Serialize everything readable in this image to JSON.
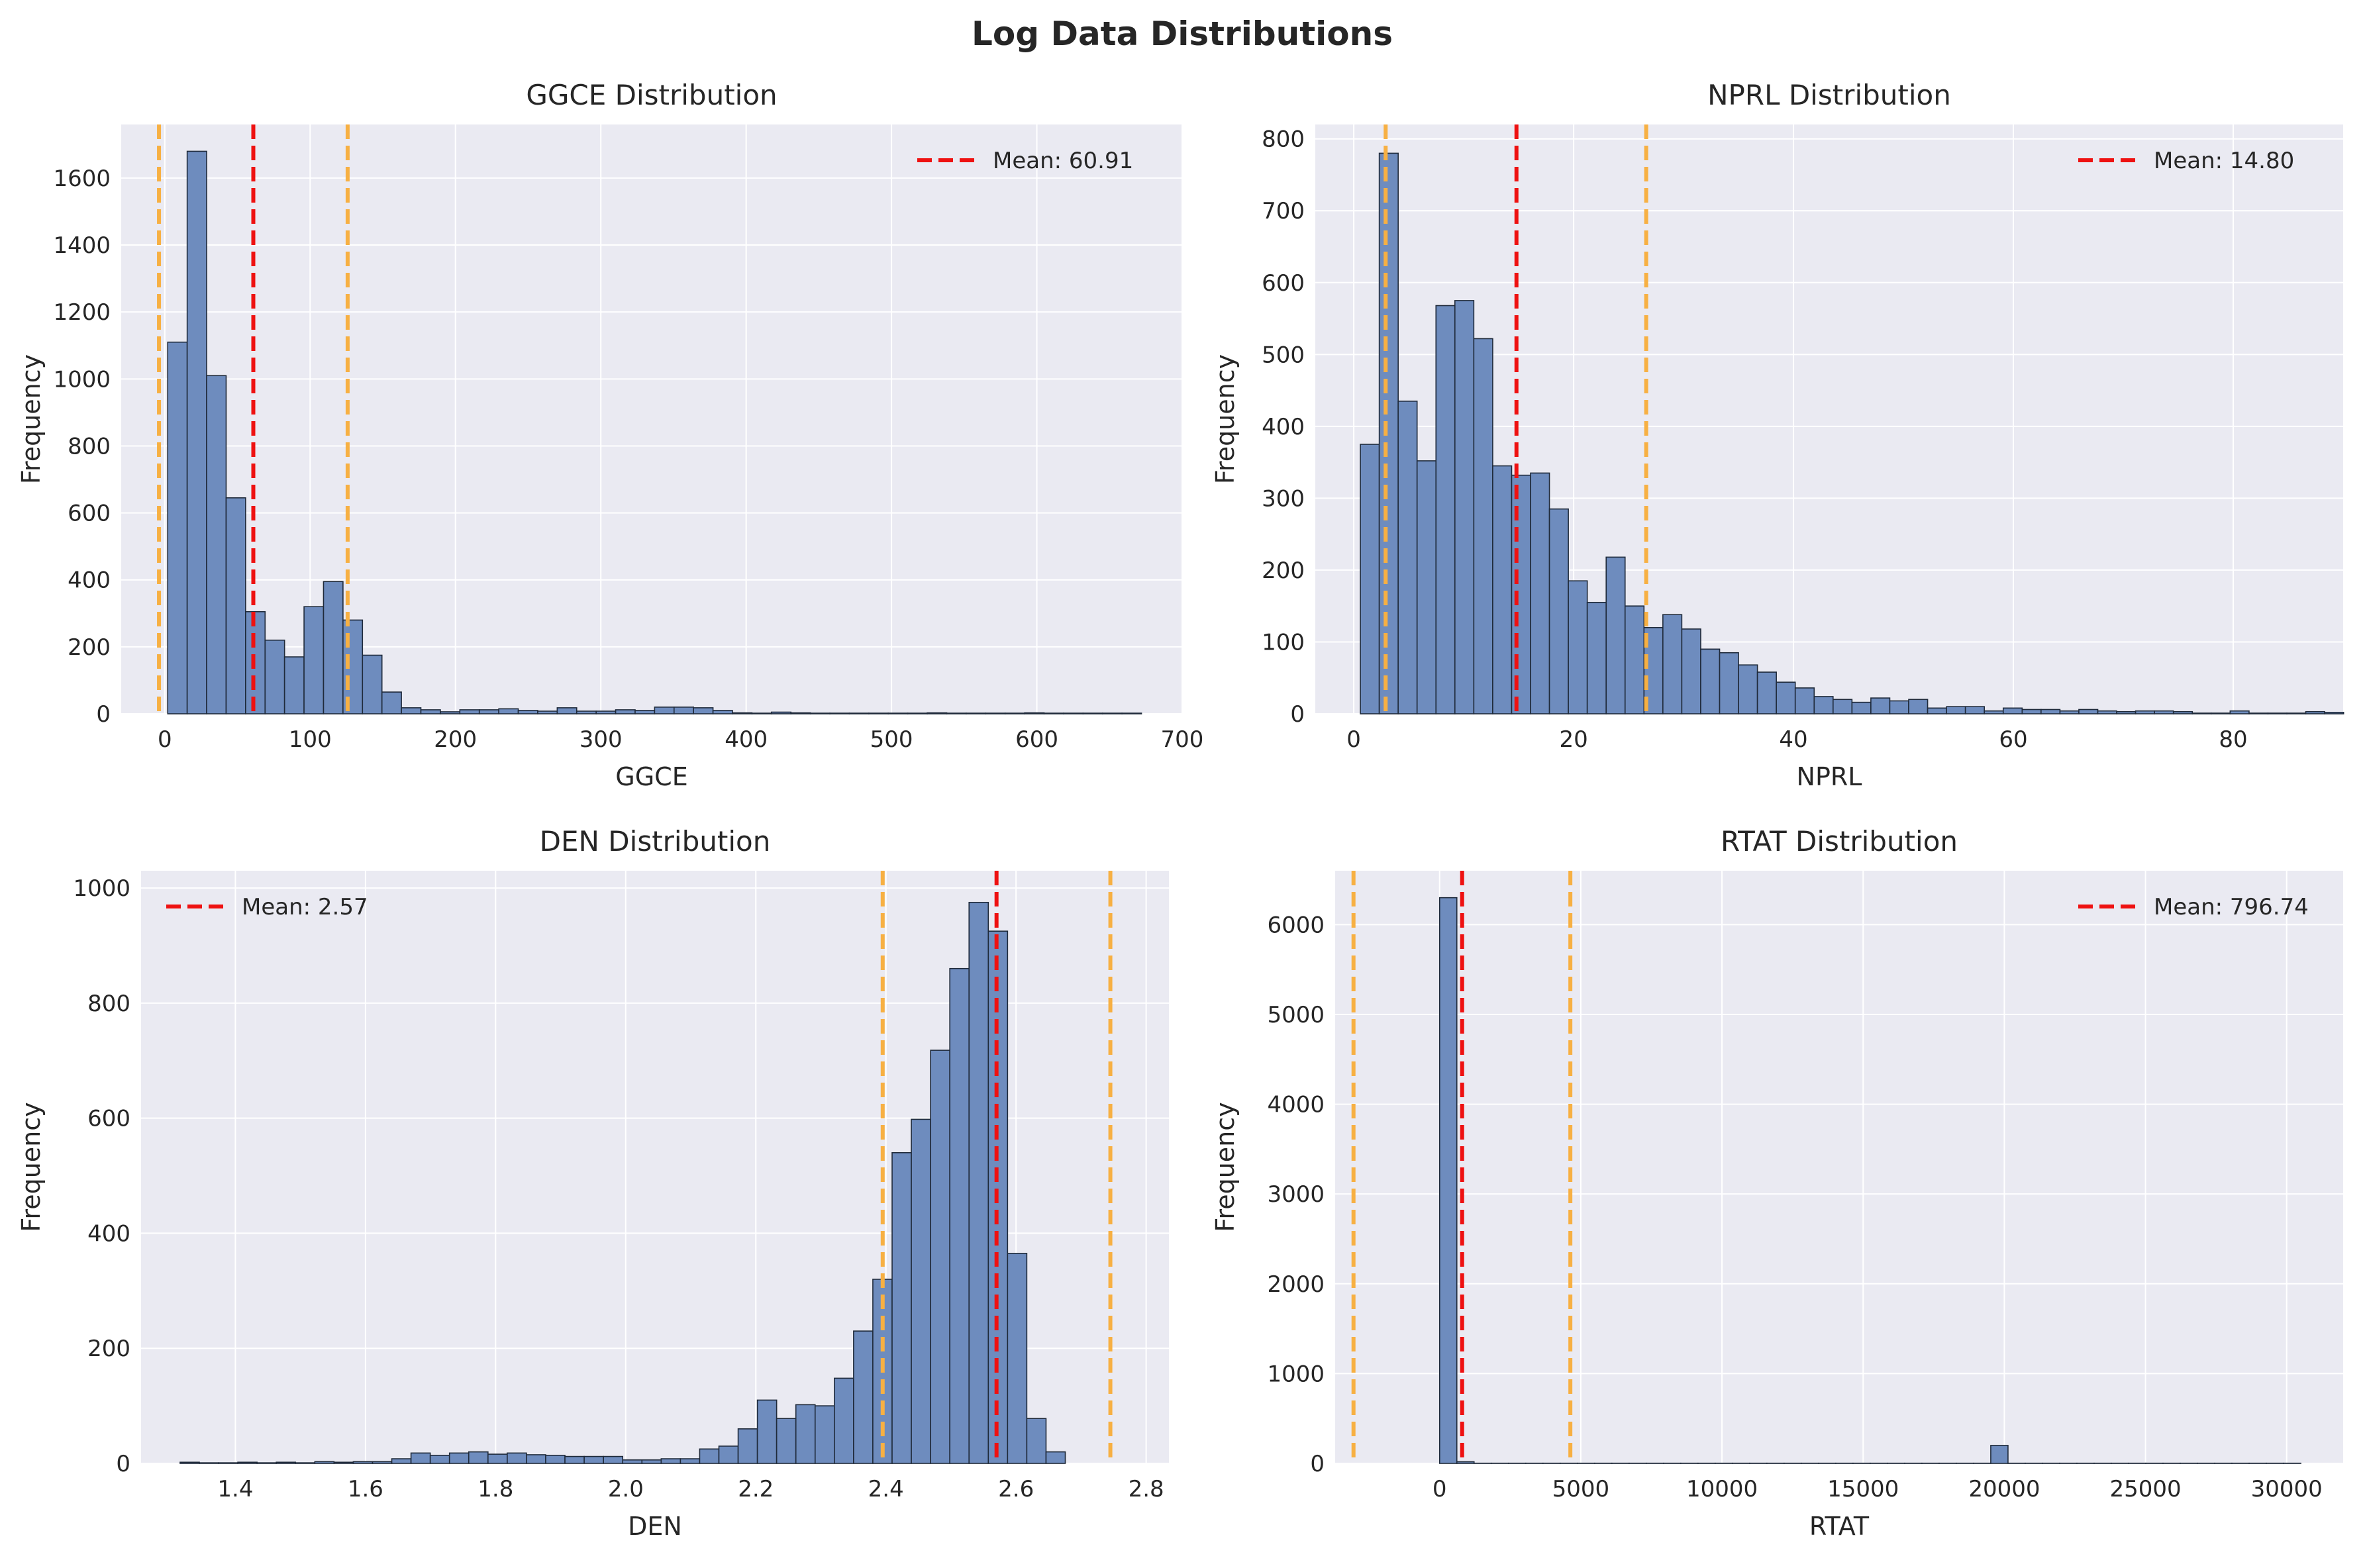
{
  "figure_title": "Log Data Distributions",
  "colors": {
    "panel_bg": "#EAEAF2",
    "grid": "#FFFFFF",
    "bar_fill": "#6E8CBE",
    "bar_edge": "#1F2A3A",
    "mean_line": "#EE1111",
    "std_line": "#F7B043"
  },
  "chart_data": [
    {
      "type": "bar",
      "subtype": "histogram",
      "title": "GGCE Distribution",
      "xlabel": "GGCE",
      "ylabel": "Frequency",
      "xlim": [
        -30,
        700
      ],
      "ylim": [
        0,
        1760
      ],
      "xticks": [
        0,
        100,
        200,
        300,
        400,
        500,
        600,
        700
      ],
      "yticks": [
        0,
        200,
        400,
        600,
        800,
        1000,
        1200,
        1400,
        1600
      ],
      "bin_start": 2,
      "bin_width": 13.4,
      "counts": [
        1110,
        1680,
        1010,
        645,
        305,
        220,
        170,
        320,
        395,
        280,
        175,
        65,
        18,
        12,
        6,
        12,
        12,
        15,
        10,
        8,
        18,
        8,
        8,
        12,
        10,
        20,
        20,
        18,
        10,
        3,
        2,
        5,
        3,
        2,
        2,
        2,
        2,
        2,
        2,
        3,
        2,
        2,
        2,
        2,
        3,
        2,
        2,
        2,
        2,
        2
      ],
      "mean": 60.91,
      "std_lines": [
        -4.0,
        125.8
      ],
      "legend_label": "Mean: 60.91",
      "legend_position": "upper right",
      "grid": true
    },
    {
      "type": "bar",
      "subtype": "histogram",
      "title": "NPRL Distribution",
      "xlabel": "NPRL",
      "ylabel": "Frequency",
      "xlim": [
        -3.5,
        90
      ],
      "ylim": [
        0,
        820
      ],
      "xticks": [
        0,
        20,
        40,
        60,
        80
      ],
      "yticks": [
        0,
        100,
        200,
        300,
        400,
        500,
        600,
        700,
        800
      ],
      "bin_start": 0.6,
      "bin_width": 1.72,
      "counts": [
        375,
        780,
        435,
        352,
        568,
        575,
        522,
        345,
        332,
        335,
        285,
        185,
        155,
        218,
        150,
        120,
        138,
        118,
        90,
        85,
        68,
        58,
        44,
        36,
        24,
        20,
        16,
        22,
        18,
        20,
        8,
        10,
        10,
        4,
        8,
        6,
        6,
        4,
        6,
        4,
        3,
        4,
        4,
        3,
        1,
        1,
        4,
        1,
        1,
        1,
        3,
        2
      ],
      "mean": 14.8,
      "std_lines": [
        2.9,
        26.6
      ],
      "legend_label": "Mean: 14.80",
      "legend_position": "upper right",
      "grid": true
    },
    {
      "type": "bar",
      "subtype": "histogram",
      "title": "DEN Distribution",
      "xlabel": "DEN",
      "ylabel": "Frequency",
      "xlim": [
        1.255,
        2.835
      ],
      "ylim": [
        0,
        1030
      ],
      "xticks": [
        1.4,
        1.6,
        1.8,
        2.0,
        2.2,
        2.4,
        2.6,
        2.8
      ],
      "tick_labels": [
        "1.4",
        "1.6",
        "1.8",
        "2.0",
        "2.2",
        "2.4",
        "2.6",
        "2.8"
      ],
      "yticks": [
        0,
        200,
        400,
        600,
        800,
        1000
      ],
      "bin_start": 1.315,
      "bin_width": 0.02958,
      "counts": [
        2,
        1,
        1,
        2,
        1,
        2,
        1,
        3,
        2,
        3,
        3,
        8,
        18,
        14,
        18,
        20,
        16,
        18,
        15,
        14,
        12,
        12,
        12,
        6,
        6,
        8,
        8,
        25,
        30,
        60,
        110,
        78,
        102,
        100,
        148,
        230,
        320,
        540,
        598,
        718,
        860,
        975,
        925,
        365,
        78,
        20
      ],
      "mean": 2.57,
      "std_lines": [
        2.395,
        2.745
      ],
      "legend_label": "Mean: 2.57",
      "legend_position": "upper left",
      "grid": true
    },
    {
      "type": "bar",
      "subtype": "histogram",
      "title": "RTAT Distribution",
      "xlabel": "RTAT",
      "ylabel": "Frequency",
      "xlim": [
        -3700,
        32000
      ],
      "ylim": [
        0,
        6600
      ],
      "xticks": [
        0,
        5000,
        10000,
        15000,
        20000,
        25000,
        30000
      ],
      "yticks": [
        0,
        1000,
        2000,
        3000,
        4000,
        5000,
        6000
      ],
      "bin_start": 0,
      "bin_width": 610,
      "counts": [
        6300,
        18,
        2,
        2,
        2,
        2,
        2,
        2,
        2,
        2,
        2,
        2,
        2,
        2,
        2,
        2,
        2,
        2,
        2,
        2,
        2,
        2,
        2,
        2,
        2,
        2,
        2,
        2,
        2,
        2,
        2,
        2,
        200,
        2,
        2,
        2,
        2,
        2,
        2,
        2,
        2,
        2,
        2,
        2,
        2,
        2,
        2,
        2,
        2,
        2
      ],
      "mean": 796.74,
      "std_lines": [
        -3050,
        4630
      ],
      "legend_label": "Mean: 796.74",
      "legend_position": "upper right",
      "grid": true
    }
  ]
}
